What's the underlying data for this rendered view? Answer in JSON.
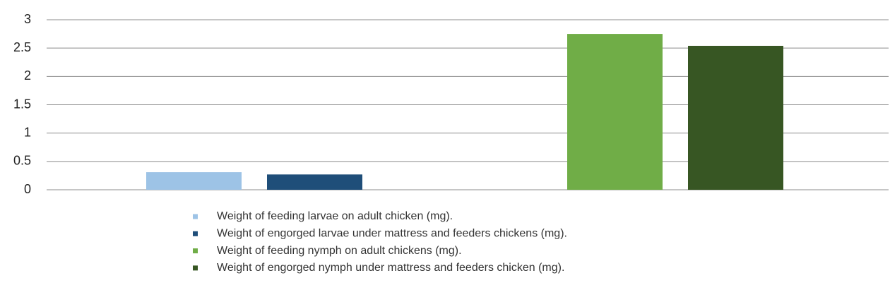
{
  "chart_data": {
    "type": "bar",
    "categories": [
      null,
      null
    ],
    "series": [
      {
        "name": "Weight of feeding larvae on adult chicken (mg).",
        "color": "#9dc3e6",
        "values": [
          0.31,
          null
        ]
      },
      {
        "name": "Weight of engorged larvae under mattress and feeders chickens (mg).",
        "color": "#1f4e79",
        "values": [
          0.27,
          null
        ]
      },
      {
        "name": "Weight of feeding nymph on adult chickens (mg).",
        "color": "#70ad47",
        "values": [
          null,
          2.75
        ]
      },
      {
        "name": "Weight of engorged nymph under mattress and feeders chicken (mg).",
        "color": "#375623",
        "values": [
          null,
          2.54
        ]
      }
    ],
    "ylim": [
      0,
      3
    ],
    "yticks": [
      0,
      0.5,
      1,
      1.5,
      2,
      2.5,
      3
    ],
    "grid": true,
    "legend": "bottom"
  }
}
